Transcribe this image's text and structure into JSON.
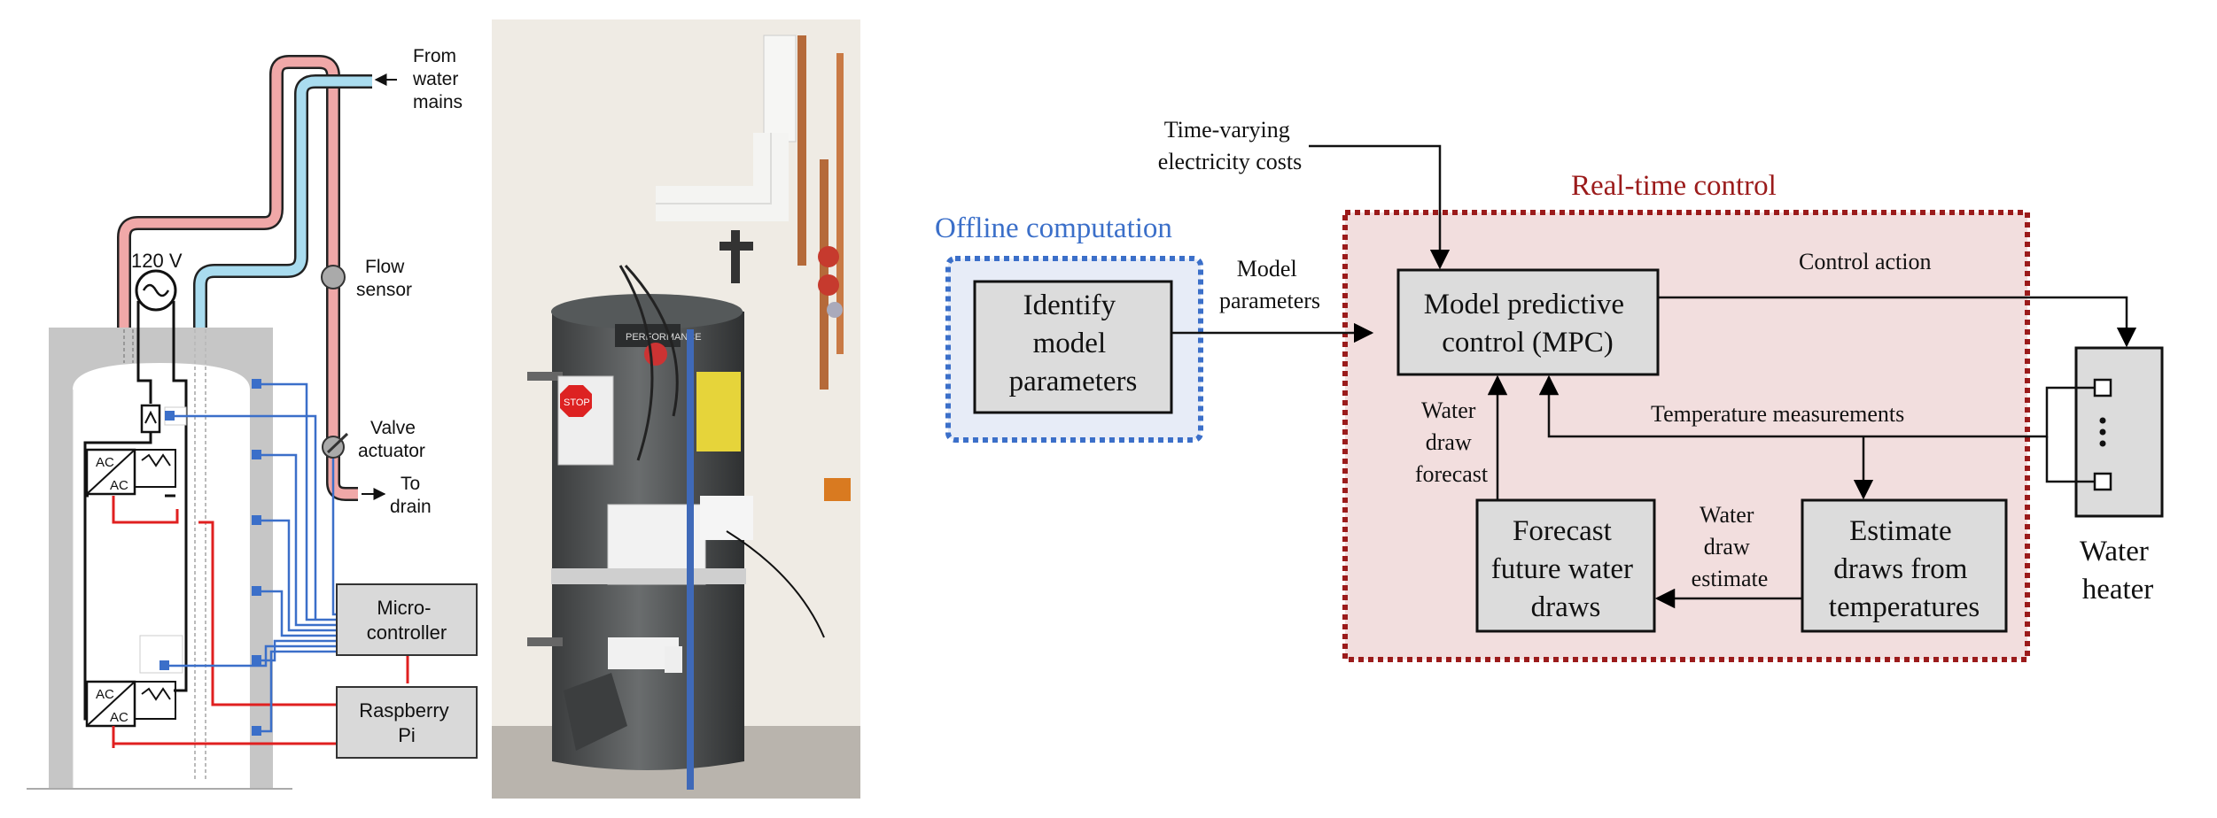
{
  "schematic": {
    "from_mains": [
      "From",
      "water",
      "mains"
    ],
    "voltage": "120 V",
    "flow_sensor": [
      "Flow",
      "sensor"
    ],
    "valve_actuator": [
      "Valve",
      "actuator"
    ],
    "to_drain": [
      "To",
      "drain"
    ],
    "microcontroller": [
      "Micro-",
      "controller"
    ],
    "raspberry_pi": [
      "Raspberry",
      "Pi"
    ],
    "relay_top": [
      "AC",
      "AC"
    ],
    "relay_bottom": [
      "AC",
      "AC"
    ]
  },
  "photo": {
    "brand": "PERFORMANCE",
    "stop_sign": "STOP"
  },
  "block_diagram": {
    "offline_title": "Offline computation",
    "realtime_title": "Real-time control",
    "identify_box": [
      "Identify",
      "model",
      "parameters"
    ],
    "mpc_box": [
      "Model predictive",
      "control (MPC)"
    ],
    "forecast_box": [
      "Forecast",
      "future water",
      "draws"
    ],
    "estimate_box": [
      "Estimate",
      "draws from",
      "temperatures"
    ],
    "electricity_costs": [
      "Time-varying",
      "electricity costs"
    ],
    "model_parameters": [
      "Model",
      "parameters"
    ],
    "control_action": "Control action",
    "temperature_measurements": "Temperature measurements",
    "water_draw_forecast": [
      "Water",
      "draw",
      "forecast"
    ],
    "water_draw_estimate": [
      "Water",
      "draw",
      "estimate"
    ],
    "water_heater": [
      "Water",
      "heater"
    ],
    "colors": {
      "offline": "#3b6fc9",
      "realtime": "#9b1b1b",
      "box_fill": "#dcdcdc"
    }
  }
}
